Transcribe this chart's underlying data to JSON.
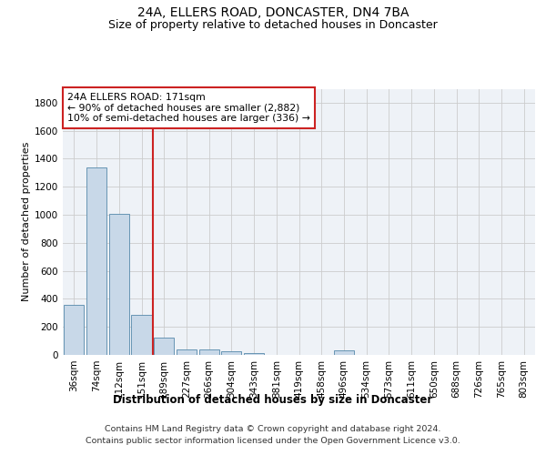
{
  "title": "24A, ELLERS ROAD, DONCASTER, DN4 7BA",
  "subtitle": "Size of property relative to detached houses in Doncaster",
  "xlabel": "Distribution of detached houses by size in Doncaster",
  "ylabel": "Number of detached properties",
  "footer_line1": "Contains HM Land Registry data © Crown copyright and database right 2024.",
  "footer_line2": "Contains public sector information licensed under the Open Government Licence v3.0.",
  "categories": [
    "36sqm",
    "74sqm",
    "112sqm",
    "151sqm",
    "189sqm",
    "227sqm",
    "266sqm",
    "304sqm",
    "343sqm",
    "381sqm",
    "419sqm",
    "458sqm",
    "496sqm",
    "534sqm",
    "573sqm",
    "611sqm",
    "650sqm",
    "688sqm",
    "726sqm",
    "765sqm",
    "803sqm"
  ],
  "values": [
    355,
    1340,
    1010,
    285,
    125,
    40,
    38,
    28,
    15,
    0,
    0,
    0,
    30,
    0,
    0,
    0,
    0,
    0,
    0,
    0,
    0
  ],
  "bar_color": "#c8d8e8",
  "bar_edge_color": "#5588aa",
  "vline_x": 3.5,
  "vline_color": "#cc2222",
  "annotation_line1": "24A ELLERS ROAD: 171sqm",
  "annotation_line2": "← 90% of detached houses are smaller (2,882)",
  "annotation_line3": "10% of semi-detached houses are larger (336) →",
  "annotation_box_color": "#cc2222",
  "ylim": [
    0,
    1900
  ],
  "yticks": [
    0,
    200,
    400,
    600,
    800,
    1000,
    1200,
    1400,
    1600,
    1800
  ],
  "grid_color": "#cccccc",
  "bg_color": "#eef2f7",
  "title_fontsize": 10,
  "subtitle_fontsize": 9,
  "ylabel_fontsize": 8,
  "xlabel_fontsize": 8.5,
  "tick_fontsize": 7.5,
  "annotation_fontsize": 7.8,
  "footer_fontsize": 6.8
}
